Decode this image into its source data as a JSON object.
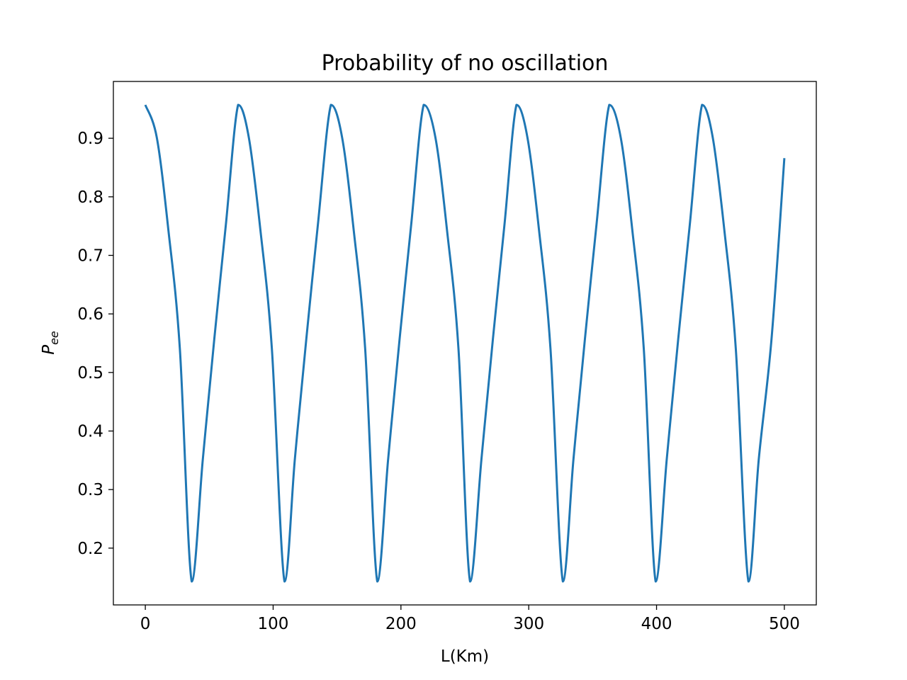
{
  "chart_data": {
    "type": "line",
    "title": "Probability of no oscillation",
    "xlabel": "L(Km)",
    "ylabel": {
      "base": "P",
      "subscript": "ee"
    },
    "xlim": [
      -25,
      525
    ],
    "ylim": [
      0.103,
      0.997
    ],
    "x_ticks": [
      0,
      100,
      200,
      300,
      400,
      500
    ],
    "y_ticks": [
      0.2,
      0.3,
      0.4,
      0.5,
      0.6,
      0.7,
      0.8,
      0.9
    ],
    "grid": false,
    "legend": "none",
    "series": [
      {
        "color": "#1f77b4",
        "x": [
          0,
          9,
          18,
          27,
          36.3,
          45,
          54,
          63,
          72.6,
          81,
          90,
          99,
          108.9,
          117,
          126,
          135,
          145.2,
          154,
          163,
          172,
          181.5,
          190,
          199,
          208,
          217.8,
          227,
          236,
          245,
          254.1,
          263,
          272,
          281,
          290.4,
          299,
          308,
          317,
          326.7,
          335,
          344,
          353,
          363,
          372,
          381,
          390,
          399.3,
          408,
          417,
          426,
          435.6,
          444,
          453,
          462,
          471.9,
          480,
          490,
          500
        ],
        "y": [
          0.957,
          0.901,
          0.744,
          0.541,
          0.143,
          0.352,
          0.558,
          0.752,
          0.957,
          0.901,
          0.744,
          0.541,
          0.143,
          0.352,
          0.558,
          0.752,
          0.957,
          0.901,
          0.744,
          0.541,
          0.143,
          0.352,
          0.558,
          0.752,
          0.957,
          0.901,
          0.744,
          0.541,
          0.143,
          0.352,
          0.558,
          0.752,
          0.957,
          0.901,
          0.744,
          0.541,
          0.143,
          0.352,
          0.558,
          0.752,
          0.957,
          0.901,
          0.744,
          0.541,
          0.143,
          0.352,
          0.558,
          0.752,
          0.957,
          0.901,
          0.744,
          0.541,
          0.143,
          0.352,
          0.558,
          0.866
        ]
      }
    ]
  }
}
